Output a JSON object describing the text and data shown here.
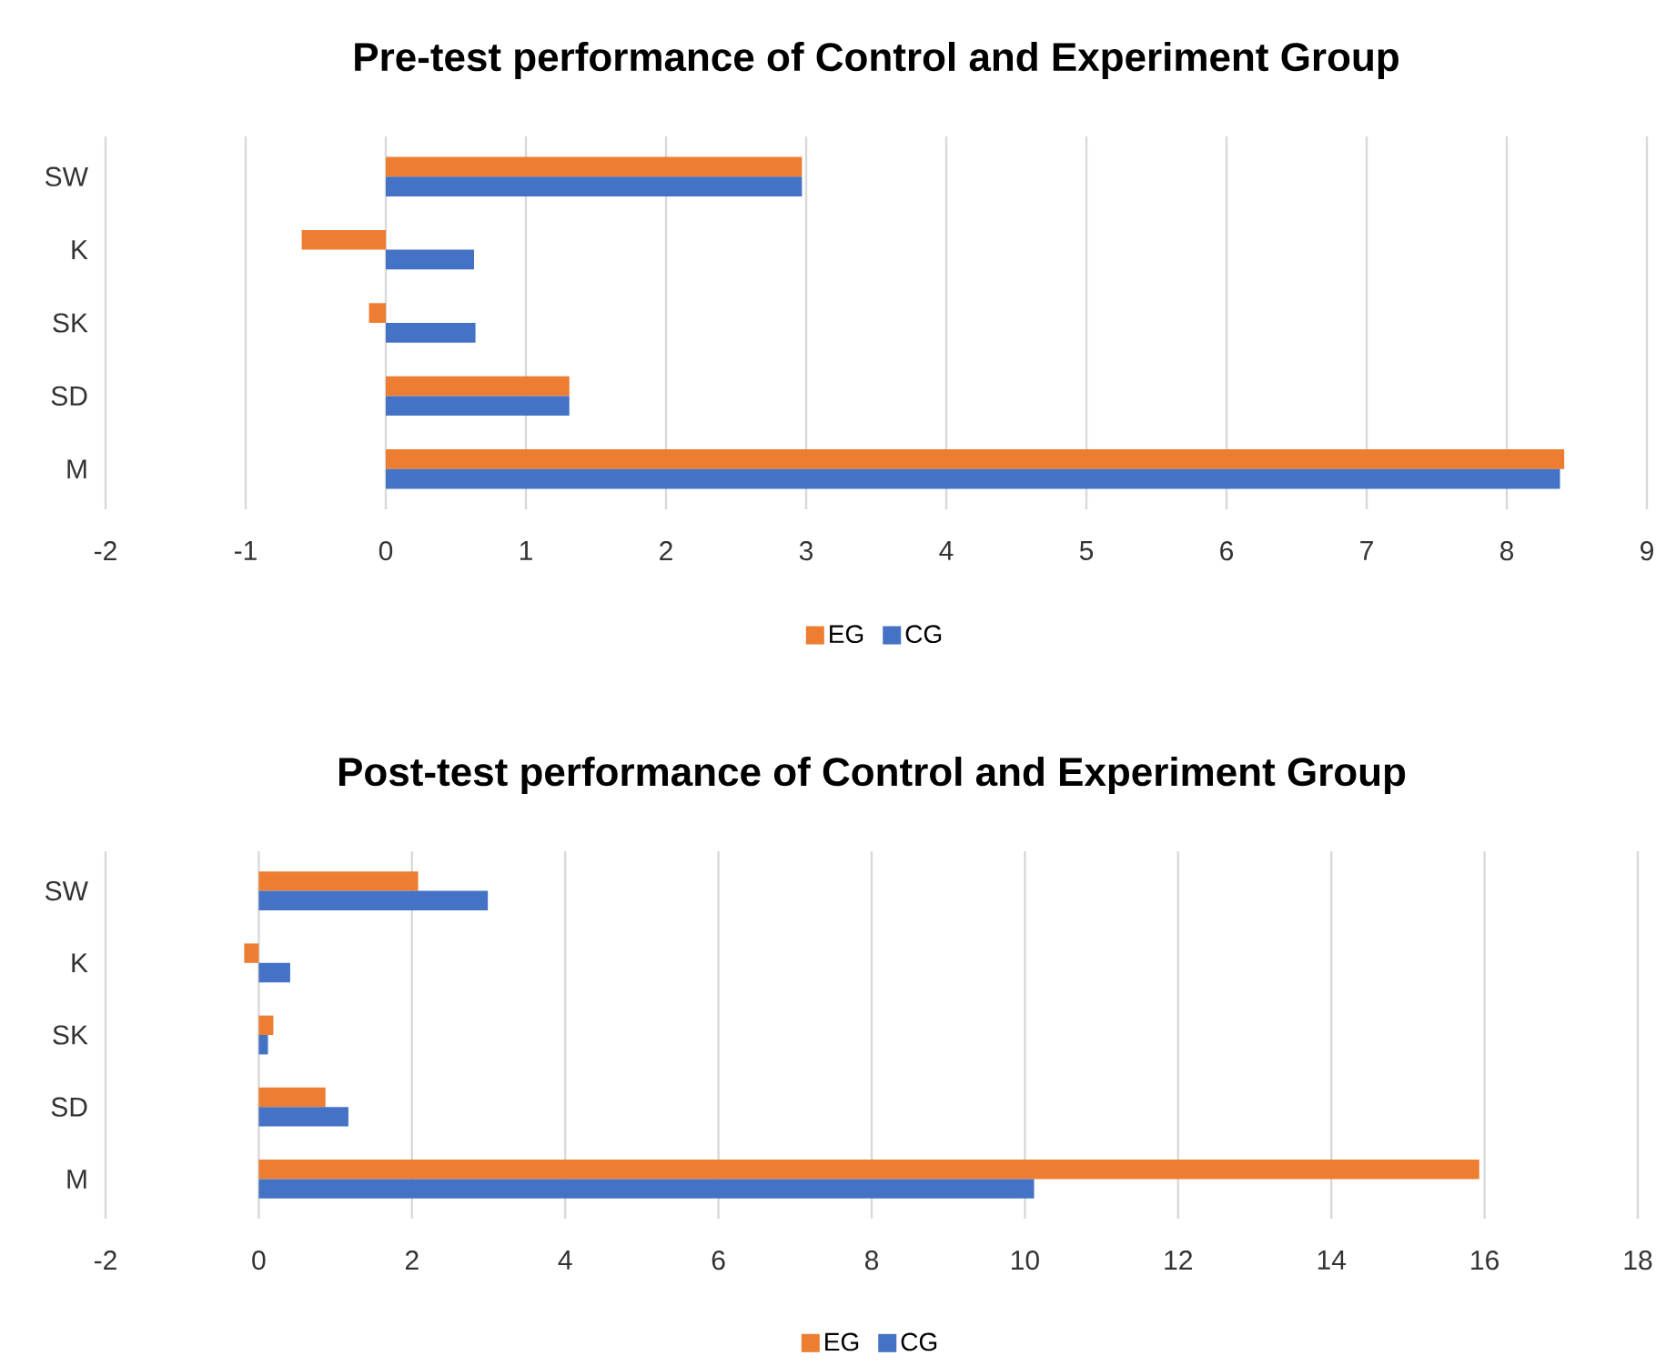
{
  "chart_data": [
    {
      "type": "bar",
      "orientation": "horizontal",
      "title": "Pre-test performance of Control and Experiment Group",
      "categories": [
        "SW",
        "K",
        "SK",
        "SD",
        "M"
      ],
      "series": [
        {
          "name": "EG",
          "color": "#ed7d31",
          "values": [
            2.97,
            -0.6,
            -0.12,
            1.31,
            8.41
          ]
        },
        {
          "name": "CG",
          "color": "#4472c4",
          "values": [
            2.97,
            0.63,
            0.64,
            1.31,
            8.38
          ]
        }
      ],
      "xlim": [
        -2,
        9
      ],
      "xticks": [
        -2,
        -1,
        0,
        1,
        2,
        3,
        4,
        5,
        6,
        7,
        8,
        9
      ],
      "grid": "x",
      "legend": "bottom"
    },
    {
      "type": "bar",
      "orientation": "horizontal",
      "title": "Post-test performance of Control and Experiment Group",
      "categories": [
        "SW",
        "K",
        "SK",
        "SD",
        "M"
      ],
      "series": [
        {
          "name": "EG",
          "color": "#ed7d31",
          "values": [
            2.08,
            -0.19,
            0.19,
            0.87,
            15.93
          ]
        },
        {
          "name": "CG",
          "color": "#4472c4",
          "values": [
            2.99,
            0.41,
            0.12,
            1.17,
            10.12
          ]
        }
      ],
      "xlim": [
        -2,
        18
      ],
      "xticks": [
        -2,
        0,
        2,
        4,
        6,
        8,
        10,
        12,
        14,
        16,
        18
      ],
      "grid": "x",
      "legend": "bottom"
    }
  ]
}
